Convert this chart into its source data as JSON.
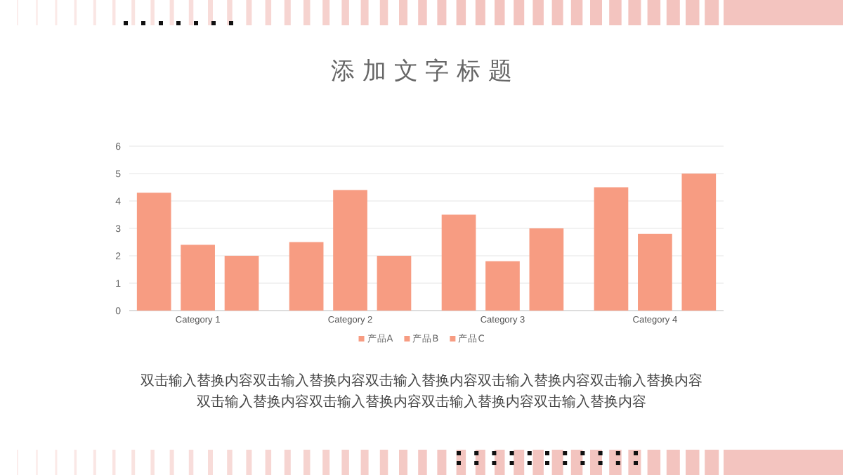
{
  "chart_data": {
    "type": "bar",
    "title": "添 加 文 字 标 题",
    "categories": [
      "Category 1",
      "Category 2",
      "Category 3",
      "Category 4"
    ],
    "series": [
      {
        "name": "产品A",
        "color": "#f79c82",
        "values": [
          4.3,
          2.5,
          3.5,
          4.5
        ]
      },
      {
        "name": "产品B",
        "color": "#f79c82",
        "values": [
          2.4,
          4.4,
          1.8,
          2.8
        ]
      },
      {
        "name": "产品C",
        "color": "#f79c82",
        "values": [
          2,
          2,
          3,
          5
        ]
      }
    ],
    "ylim": [
      0,
      6
    ],
    "yticks": [
      0,
      1,
      2,
      3,
      4,
      5,
      6
    ],
    "grid": "y",
    "legend": "bottom",
    "annotations": [
      "双击输入替换内容双击输入替换内容双击输入替换内容双击输入替换内容双击输入替换内容",
      "双击输入替换内容双击输入替换内容双击输入替换内容双击输入替换内容"
    ]
  }
}
